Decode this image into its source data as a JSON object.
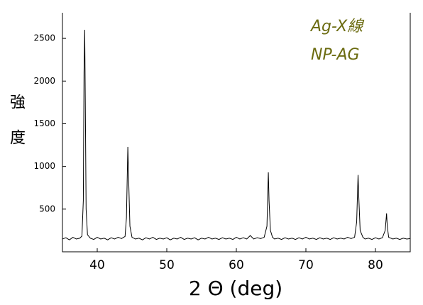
{
  "chart_data": {
    "type": "line",
    "xlabel": "2 Θ (deg)",
    "ylabel": "強度",
    "annotations": [
      "Ag-X線",
      "NP-AG"
    ],
    "annotation_color": "#6b6b10",
    "color": "#000000",
    "xlim": [
      35,
      85
    ],
    "xticks": [
      40,
      50,
      60,
      70,
      80
    ],
    "ylim": [
      0,
      2800
    ],
    "yticks": [
      500,
      1000,
      1500,
      2000,
      2500
    ],
    "x": [
      35,
      35.5,
      36,
      36.5,
      37,
      37.5,
      37.8,
      38.0,
      38.1,
      38.2,
      38.3,
      38.4,
      38.6,
      39,
      39.5,
      40,
      40.5,
      41,
      41.5,
      42,
      42.5,
      43,
      43.5,
      44,
      44.2,
      44.4,
      44.5,
      44.7,
      45,
      45.5,
      46,
      46.5,
      47,
      47.5,
      48,
      48.5,
      49,
      49.5,
      50,
      50.5,
      51,
      51.5,
      52,
      52.5,
      53,
      53.5,
      54,
      54.5,
      55,
      55.5,
      56,
      56.5,
      57,
      57.5,
      58,
      58.5,
      59,
      59.5,
      60,
      60.5,
      61,
      61.5,
      62,
      62.5,
      63,
      63.5,
      64,
      64.4,
      64.6,
      64.7,
      64.9,
      65.2,
      65.5,
      66,
      66.5,
      67,
      67.5,
      68,
      68.5,
      69,
      69.5,
      70,
      70.5,
      71,
      71.5,
      72,
      72.5,
      73,
      73.5,
      74,
      74.5,
      75,
      75.5,
      76,
      76.5,
      77,
      77.3,
      77.5,
      77.6,
      77.8,
      78.2,
      78.5,
      79,
      79.5,
      80,
      80.5,
      81,
      81.4,
      81.6,
      81.7,
      81.9,
      82.5,
      83,
      83.5,
      84,
      84.5,
      85
    ],
    "values": [
      150,
      165,
      140,
      170,
      150,
      160,
      185,
      600,
      2100,
      2600,
      1600,
      500,
      200,
      160,
      145,
      170,
      150,
      160,
      140,
      165,
      150,
      170,
      155,
      180,
      400,
      1230,
      900,
      300,
      170,
      150,
      160,
      140,
      165,
      150,
      170,
      145,
      160,
      150,
      165,
      140,
      160,
      150,
      170,
      145,
      160,
      150,
      165,
      140,
      160,
      150,
      170,
      150,
      160,
      145,
      165,
      150,
      160,
      145,
      170,
      150,
      165,
      150,
      190,
      150,
      165,
      155,
      170,
      300,
      930,
      600,
      250,
      170,
      150,
      160,
      145,
      165,
      150,
      160,
      145,
      165,
      150,
      170,
      150,
      160,
      145,
      165,
      150,
      160,
      145,
      165,
      150,
      160,
      150,
      170,
      155,
      170,
      350,
      900,
      650,
      250,
      170,
      150,
      160,
      145,
      165,
      150,
      165,
      250,
      450,
      300,
      170,
      150,
      160,
      145,
      160,
      150,
      155
    ]
  }
}
